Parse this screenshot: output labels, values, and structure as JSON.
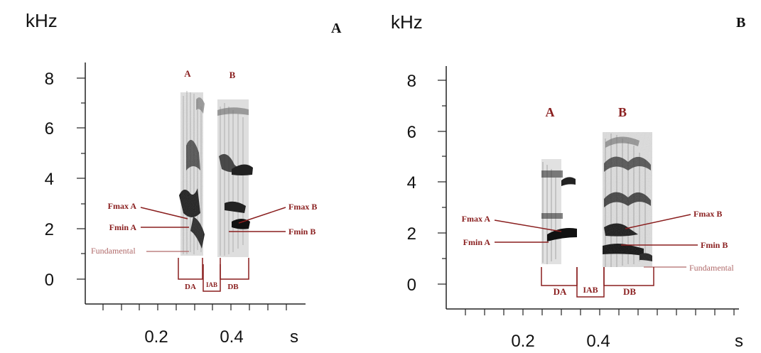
{
  "panels": [
    {
      "id": "A",
      "letter": "A",
      "y_unit": "kHz",
      "x_unit": "s",
      "y_ticks": [
        "0",
        "2",
        "4",
        "6",
        "8"
      ],
      "x_ticks": [
        "0.2",
        "0.4"
      ],
      "note_labels": [
        "A",
        "B"
      ],
      "annotations": [
        "Fmax A",
        "Fmin A",
        "Fundamental",
        "Fmax B",
        "Fmin B"
      ],
      "brackets": [
        "DA",
        "IAB",
        "DB"
      ]
    },
    {
      "id": "B",
      "letter": "B",
      "y_unit": "kHz",
      "x_unit": "s",
      "y_ticks": [
        "0",
        "2",
        "4",
        "6",
        "8"
      ],
      "x_ticks": [
        "0.2",
        "0.4"
      ],
      "note_labels": [
        "A",
        "B"
      ],
      "annotations": [
        "Fmax A",
        "Fmin A",
        "Fmax B",
        "Fmin B",
        "Fundamental"
      ],
      "brackets": [
        "DA",
        "IAB",
        "DB"
      ]
    }
  ],
  "colors": {
    "annotation": "#8a1f1f",
    "fundamental": "#b06a6a",
    "ink": "#111111"
  }
}
